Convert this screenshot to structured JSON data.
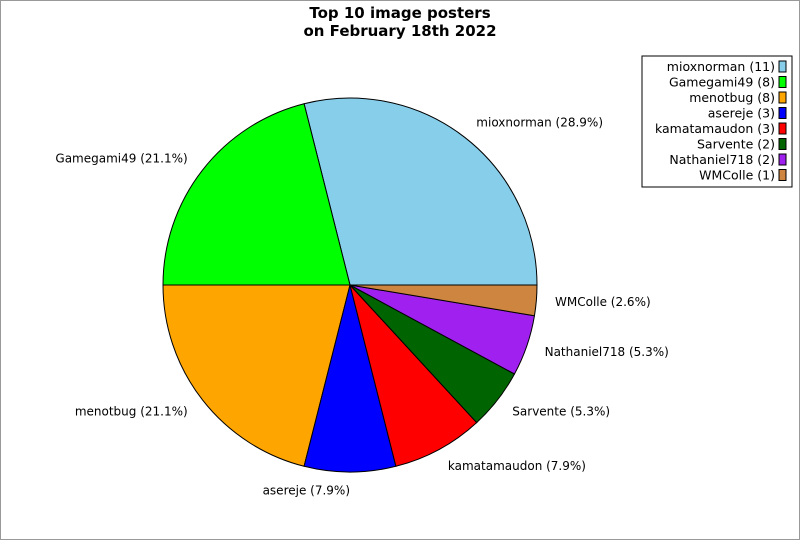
{
  "chart_data": {
    "type": "pie",
    "title_lines": [
      "Top 10 image posters",
      "on February 18th 2022"
    ],
    "legend_placement": "top-right",
    "slices": [
      {
        "name": "mioxnorman",
        "value": 11,
        "percent_label": "mioxnorman (28.9%)",
        "legend_label": "mioxnorman (11)",
        "color": "#87ceeb"
      },
      {
        "name": "Gamegami49",
        "value": 8,
        "percent_label": "Gamegami49 (21.1%)",
        "legend_label": "Gamegami49 (8)",
        "color": "#00ff00"
      },
      {
        "name": "menotbug",
        "value": 8,
        "percent_label": "menotbug (21.1%)",
        "legend_label": "menotbug (8)",
        "color": "#ffa500"
      },
      {
        "name": "asereje",
        "value": 3,
        "percent_label": "asereje (7.9%)",
        "legend_label": "asereje (3)",
        "color": "#0000ff"
      },
      {
        "name": "kamatamaudon",
        "value": 3,
        "percent_label": "kamatamaudon (7.9%)",
        "legend_label": "kamatamaudon (3)",
        "color": "#ff0000"
      },
      {
        "name": "Sarvente",
        "value": 2,
        "percent_label": "Sarvente (5.3%)",
        "legend_label": "Sarvente (2)",
        "color": "#006400"
      },
      {
        "name": "Nathaniel718",
        "value": 2,
        "percent_label": "Nathaniel718 (5.3%)",
        "legend_label": "Nathaniel718 (2)",
        "color": "#a020f0"
      },
      {
        "name": "WMColle",
        "value": 1,
        "percent_label": "WMColle (2.6%)",
        "legend_label": "WMColle (1)",
        "color": "#cd853f"
      }
    ]
  }
}
